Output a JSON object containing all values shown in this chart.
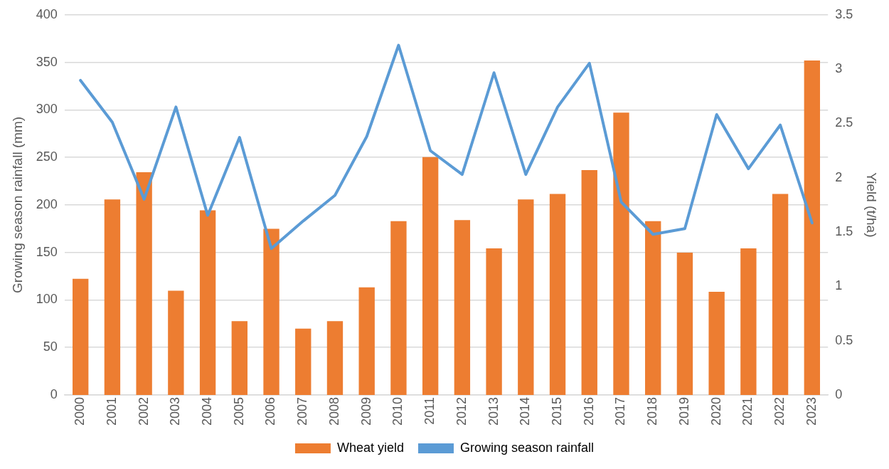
{
  "chart_data": {
    "type": "bar",
    "ylabel": "Growing season rainfall (mm)",
    "y2label": "Yield (t/ha)",
    "categories": [
      "2000",
      "2001",
      "2002",
      "2003",
      "2004",
      "2005",
      "2006",
      "2007",
      "2008",
      "2009",
      "2010",
      "2011",
      "2012",
      "2013",
      "2014",
      "2015",
      "2016",
      "2017",
      "2018",
      "2019",
      "2020",
      "2021",
      "2022",
      "2023"
    ],
    "series": [
      {
        "name": "Wheat yield",
        "axis": "y2",
        "color": "#ed7d31",
        "values": [
          1.07,
          1.8,
          2.05,
          0.96,
          1.7,
          0.68,
          1.53,
          0.61,
          0.68,
          0.99,
          1.6,
          2.19,
          1.61,
          1.35,
          1.8,
          1.85,
          2.07,
          2.6,
          1.6,
          1.31,
          0.95,
          1.35,
          1.85,
          3.08
        ]
      },
      {
        "name": "Growing season rainfall",
        "type": "line",
        "color": "#5b9bd5",
        "values": [
          331,
          287,
          206,
          303,
          189,
          271,
          154,
          183,
          210,
          272,
          368,
          257,
          232,
          339,
          232,
          303,
          349,
          203,
          169,
          175,
          295,
          238,
          284,
          181
        ]
      }
    ],
    "ylim": [
      0,
      400
    ],
    "yticks": [
      0,
      50,
      100,
      150,
      200,
      250,
      300,
      350,
      400
    ],
    "y2lim": [
      0,
      3.5
    ],
    "y2ticks": [
      0,
      0.5,
      1,
      1.5,
      2,
      2.5,
      3,
      3.5
    ],
    "grid": "y",
    "legend": "bottom",
    "marker": "none"
  }
}
